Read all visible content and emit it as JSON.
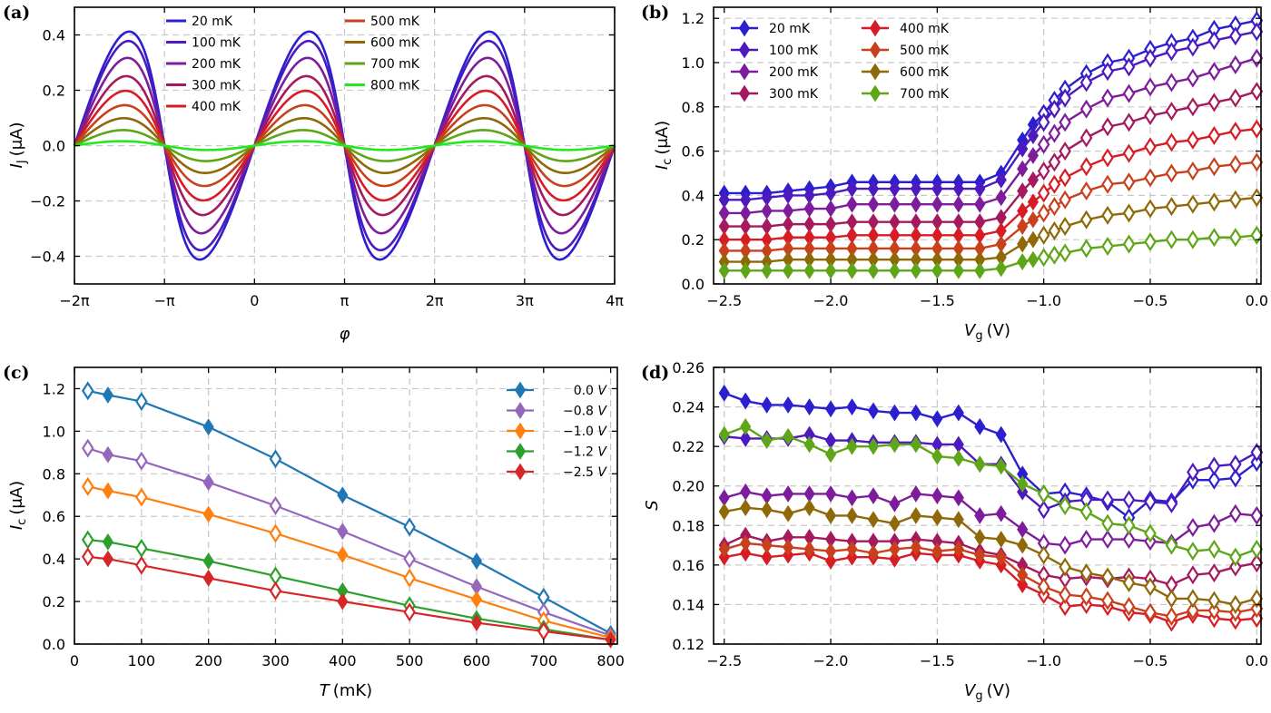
{
  "figure": {
    "title": ""
  },
  "chart_data": [
    {
      "id": "a",
      "panel_label": "(a)",
      "type": "line",
      "title": "",
      "xlabel": "φ",
      "ylabel_main": "I",
      "ylabel_sub": "J",
      "ylabel_unit": "(μA)",
      "xlim": [
        -6.2832,
        12.5664
      ],
      "ylim": [
        -0.5,
        0.5
      ],
      "xticks": [
        -6.2832,
        -3.1416,
        0,
        3.1416,
        6.2832,
        9.4248,
        12.5664
      ],
      "xtick_labels": [
        "−2π",
        "−π",
        "0",
        "π",
        "2π",
        "3π",
        "4π"
      ],
      "yticks": [
        -0.4,
        -0.2,
        0.0,
        0.2,
        0.4
      ],
      "ytick_labels": [
        "−0.4",
        "−0.2",
        "0.0",
        "0.2",
        "0.4"
      ],
      "grid": true,
      "legend_position": "top",
      "model": "I(φ) = A·sin(φ) / sqrt(1 − τ·sin²(φ/2)) scaled so that max equals peak",
      "series": [
        {
          "name": "20 mK",
          "color": "#2b1fd0",
          "peak": 0.412,
          "tau": 0.75
        },
        {
          "name": "100 mK",
          "color": "#4d1ac0",
          "peak": 0.378,
          "tau": 0.72
        },
        {
          "name": "200 mK",
          "color": "#7e1d9c",
          "peak": 0.317,
          "tau": 0.68
        },
        {
          "name": "300 mK",
          "color": "#a5195e",
          "peak": 0.251,
          "tau": 0.62
        },
        {
          "name": "400 mK",
          "color": "#d81c25",
          "peak": 0.198,
          "tau": 0.58
        },
        {
          "name": "500 mK",
          "color": "#c8411c",
          "peak": 0.146,
          "tau": 0.52
        },
        {
          "name": "600 mK",
          "color": "#8f6908",
          "peak": 0.099,
          "tau": 0.46
        },
        {
          "name": "700 mK",
          "color": "#5ea617",
          "peak": 0.056,
          "tau": 0.4
        },
        {
          "name": "800 mK",
          "color": "#22e820",
          "peak": 0.016,
          "tau": 0.3
        }
      ]
    },
    {
      "id": "b",
      "panel_label": "(b)",
      "type": "line",
      "title": "",
      "xlabel_main": "V",
      "xlabel_sub": "g",
      "xlabel_unit": "(V)",
      "ylabel_main": "I",
      "ylabel_sub": "c",
      "ylabel_unit": "(μA)",
      "xlim": [
        -2.55,
        0.02
      ],
      "ylim": [
        0.0,
        1.25
      ],
      "xticks": [
        -2.5,
        -2.0,
        -1.5,
        -1.0,
        -0.5,
        0.0
      ],
      "xtick_labels": [
        "−2.5",
        "−2.0",
        "−1.5",
        "−1.0",
        "−0.5",
        "0.0"
      ],
      "yticks": [
        0.0,
        0.2,
        0.4,
        0.6,
        0.8,
        1.0,
        1.2
      ],
      "ytick_labels": [
        "0.0",
        "0.2",
        "0.4",
        "0.6",
        "0.8",
        "1.0",
        "1.2"
      ],
      "grid": true,
      "legend_position": "upper-left",
      "x": [
        -2.5,
        -2.4,
        -2.3,
        -2.2,
        -2.1,
        -2.0,
        -1.9,
        -1.8,
        -1.7,
        -1.6,
        -1.5,
        -1.4,
        -1.3,
        -1.2,
        -1.1,
        -1.05,
        -1.0,
        -0.95,
        -0.9,
        -0.8,
        -0.7,
        -0.6,
        -0.5,
        -0.4,
        -0.3,
        -0.2,
        -0.1,
        0.0
      ],
      "series": [
        {
          "name": "20 mK",
          "color": "#2b1fd0",
          "values": [
            0.41,
            0.41,
            0.41,
            0.42,
            0.43,
            0.44,
            0.46,
            0.46,
            0.46,
            0.46,
            0.46,
            0.46,
            0.46,
            0.5,
            0.65,
            0.72,
            0.77,
            0.83,
            0.88,
            0.95,
            1.0,
            1.02,
            1.06,
            1.09,
            1.11,
            1.15,
            1.17,
            1.19
          ]
        },
        {
          "name": "100 mK",
          "color": "#4d1ac0",
          "values": [
            0.38,
            0.38,
            0.39,
            0.4,
            0.4,
            0.41,
            0.43,
            0.43,
            0.43,
            0.43,
            0.43,
            0.43,
            0.43,
            0.47,
            0.61,
            0.67,
            0.73,
            0.79,
            0.84,
            0.91,
            0.96,
            0.98,
            1.02,
            1.05,
            1.07,
            1.1,
            1.12,
            1.14
          ]
        },
        {
          "name": "200 mK",
          "color": "#7e1d9c",
          "values": [
            0.32,
            0.32,
            0.33,
            0.33,
            0.34,
            0.34,
            0.36,
            0.36,
            0.36,
            0.36,
            0.36,
            0.36,
            0.36,
            0.39,
            0.52,
            0.58,
            0.63,
            0.68,
            0.73,
            0.79,
            0.84,
            0.86,
            0.89,
            0.91,
            0.93,
            0.96,
            0.99,
            1.02
          ]
        },
        {
          "name": "300 mK",
          "color": "#a5195e",
          "values": [
            0.26,
            0.26,
            0.26,
            0.27,
            0.27,
            0.27,
            0.28,
            0.28,
            0.28,
            0.28,
            0.28,
            0.28,
            0.28,
            0.3,
            0.42,
            0.47,
            0.51,
            0.55,
            0.6,
            0.66,
            0.71,
            0.73,
            0.76,
            0.78,
            0.8,
            0.82,
            0.84,
            0.87
          ]
        },
        {
          "name": "400 mK",
          "color": "#d81c25",
          "values": [
            0.2,
            0.2,
            0.2,
            0.21,
            0.21,
            0.21,
            0.22,
            0.22,
            0.22,
            0.22,
            0.22,
            0.22,
            0.22,
            0.24,
            0.33,
            0.37,
            0.41,
            0.45,
            0.48,
            0.53,
            0.57,
            0.59,
            0.62,
            0.64,
            0.65,
            0.67,
            0.69,
            0.7
          ]
        },
        {
          "name": "500 mK",
          "color": "#c8411c",
          "values": [
            0.15,
            0.15,
            0.15,
            0.16,
            0.16,
            0.16,
            0.16,
            0.16,
            0.16,
            0.16,
            0.16,
            0.16,
            0.16,
            0.18,
            0.26,
            0.29,
            0.32,
            0.35,
            0.38,
            0.42,
            0.45,
            0.46,
            0.48,
            0.5,
            0.51,
            0.53,
            0.54,
            0.55
          ]
        },
        {
          "name": "600 mK",
          "color": "#8f6908",
          "values": [
            0.1,
            0.1,
            0.1,
            0.11,
            0.11,
            0.11,
            0.11,
            0.11,
            0.11,
            0.11,
            0.11,
            0.11,
            0.11,
            0.12,
            0.18,
            0.2,
            0.22,
            0.24,
            0.26,
            0.29,
            0.31,
            0.32,
            0.34,
            0.35,
            0.36,
            0.37,
            0.38,
            0.39
          ]
        },
        {
          "name": "700 mK",
          "color": "#5ea617",
          "values": [
            0.06,
            0.06,
            0.06,
            0.06,
            0.06,
            0.06,
            0.06,
            0.06,
            0.06,
            0.06,
            0.06,
            0.06,
            0.06,
            0.07,
            0.1,
            0.11,
            0.12,
            0.13,
            0.14,
            0.16,
            0.17,
            0.18,
            0.19,
            0.2,
            0.2,
            0.21,
            0.21,
            0.22
          ]
        }
      ]
    },
    {
      "id": "c",
      "panel_label": "(c)",
      "type": "line",
      "title": "",
      "xlabel_main": "T",
      "xlabel_unit": "(mK)",
      "ylabel_main": "I",
      "ylabel_sub": "c",
      "ylabel_unit": "(μA)",
      "xlim": [
        0,
        810
      ],
      "ylim": [
        0.0,
        1.3
      ],
      "xticks": [
        0,
        100,
        200,
        300,
        400,
        500,
        600,
        700,
        800
      ],
      "xtick_labels": [
        "0",
        "100",
        "200",
        "300",
        "400",
        "500",
        "600",
        "700",
        "800"
      ],
      "yticks": [
        0.0,
        0.2,
        0.4,
        0.6,
        0.8,
        1.0,
        1.2
      ],
      "ytick_labels": [
        "0.0",
        "0.2",
        "0.4",
        "0.6",
        "0.8",
        "1.0",
        "1.2"
      ],
      "grid": true,
      "legend_position": "upper-right",
      "x": [
        20,
        50,
        100,
        200,
        300,
        400,
        500,
        600,
        700,
        800
      ],
      "series": [
        {
          "name": "0.0",
          "unit": "V",
          "color": "#1f77b4",
          "values": [
            1.19,
            1.17,
            1.14,
            1.02,
            0.87,
            0.7,
            0.55,
            0.39,
            0.22,
            0.05
          ]
        },
        {
          "name": "−0.8",
          "unit": "V",
          "color": "#9467bd",
          "values": [
            0.92,
            0.89,
            0.86,
            0.76,
            0.65,
            0.53,
            0.4,
            0.27,
            0.15,
            0.04
          ]
        },
        {
          "name": "−1.0",
          "unit": "V",
          "color": "#ff7f0e",
          "values": [
            0.74,
            0.72,
            0.69,
            0.61,
            0.52,
            0.42,
            0.31,
            0.21,
            0.11,
            0.03
          ]
        },
        {
          "name": "−1.2",
          "unit": "V",
          "color": "#2ca02c",
          "values": [
            0.49,
            0.48,
            0.45,
            0.39,
            0.32,
            0.25,
            0.18,
            0.12,
            0.07,
            0.02
          ]
        },
        {
          "name": "−2.5",
          "unit": "V",
          "color": "#d62728",
          "values": [
            0.41,
            0.4,
            0.37,
            0.31,
            0.25,
            0.2,
            0.15,
            0.1,
            0.06,
            0.02
          ]
        }
      ]
    },
    {
      "id": "d",
      "panel_label": "(d)",
      "type": "line",
      "title": "",
      "xlabel_main": "V",
      "xlabel_sub": "g",
      "xlabel_unit": "(V)",
      "ylabel_main": "S",
      "xlim": [
        -2.55,
        0.02
      ],
      "ylim": [
        0.12,
        0.26
      ],
      "xticks": [
        -2.5,
        -2.0,
        -1.5,
        -1.0,
        -0.5,
        0.0
      ],
      "xtick_labels": [
        "−2.5",
        "−2.0",
        "−1.5",
        "−1.0",
        "−0.5",
        "0.0"
      ],
      "yticks": [
        0.12,
        0.14,
        0.16,
        0.18,
        0.2,
        0.22,
        0.24,
        0.26
      ],
      "ytick_labels": [
        "0.12",
        "0.14",
        "0.16",
        "0.18",
        "0.20",
        "0.22",
        "0.24",
        "0.26"
      ],
      "grid": true,
      "x": [
        -2.5,
        -2.4,
        -2.3,
        -2.2,
        -2.1,
        -2.0,
        -1.9,
        -1.8,
        -1.7,
        -1.6,
        -1.5,
        -1.4,
        -1.3,
        -1.2,
        -1.1,
        -1.0,
        -0.9,
        -0.8,
        -0.7,
        -0.6,
        -0.5,
        -0.4,
        -0.3,
        -0.2,
        -0.1,
        0.0
      ],
      "series": [
        {
          "name": "20 mK",
          "color": "#2b1fd0",
          "values": [
            0.247,
            0.243,
            0.241,
            0.241,
            0.24,
            0.239,
            0.24,
            0.238,
            0.237,
            0.237,
            0.234,
            0.237,
            0.23,
            0.226,
            0.206,
            0.196,
            0.197,
            0.195,
            0.192,
            0.184,
            0.193,
            0.192,
            0.203,
            0.203,
            0.204,
            0.212
          ]
        },
        {
          "name": "100 mK",
          "color": "#4d1ac0",
          "values": [
            0.225,
            0.224,
            0.224,
            0.224,
            0.226,
            0.223,
            0.223,
            0.222,
            0.222,
            0.222,
            0.221,
            0.221,
            0.211,
            0.211,
            0.197,
            0.188,
            0.192,
            0.193,
            0.193,
            0.193,
            0.192,
            0.191,
            0.207,
            0.21,
            0.211,
            0.217
          ]
        },
        {
          "name": "200 mK",
          "color": "#7e1d9c",
          "values": [
            0.194,
            0.197,
            0.195,
            0.196,
            0.196,
            0.196,
            0.194,
            0.195,
            0.191,
            0.196,
            0.195,
            0.194,
            0.185,
            0.186,
            0.178,
            0.171,
            0.17,
            0.173,
            0.173,
            0.173,
            0.172,
            0.171,
            0.179,
            0.181,
            0.186,
            0.185
          ]
        },
        {
          "name": "300 mK",
          "color": "#a5195e",
          "values": [
            0.17,
            0.175,
            0.172,
            0.174,
            0.174,
            0.173,
            0.172,
            0.172,
            0.172,
            0.173,
            0.172,
            0.171,
            0.167,
            0.165,
            0.16,
            0.155,
            0.153,
            0.154,
            0.153,
            0.154,
            0.153,
            0.15,
            0.155,
            0.156,
            0.159,
            0.161
          ]
        },
        {
          "name": "400 mK",
          "color": "#d81c25",
          "values": [
            0.164,
            0.166,
            0.164,
            0.165,
            0.166,
            0.162,
            0.164,
            0.164,
            0.163,
            0.166,
            0.165,
            0.165,
            0.162,
            0.16,
            0.15,
            0.145,
            0.139,
            0.14,
            0.139,
            0.136,
            0.135,
            0.131,
            0.135,
            0.133,
            0.132,
            0.133
          ]
        },
        {
          "name": "500 mK",
          "color": "#c8411c",
          "values": [
            0.168,
            0.171,
            0.17,
            0.169,
            0.168,
            0.167,
            0.168,
            0.166,
            0.168,
            0.169,
            0.167,
            0.168,
            0.165,
            0.164,
            0.155,
            0.149,
            0.145,
            0.144,
            0.142,
            0.139,
            0.136,
            0.134,
            0.137,
            0.137,
            0.136,
            0.138
          ]
        },
        {
          "name": "600 mK",
          "color": "#8f6908",
          "values": [
            0.187,
            0.189,
            0.188,
            0.186,
            0.189,
            0.185,
            0.185,
            0.183,
            0.181,
            0.185,
            0.184,
            0.183,
            0.174,
            0.173,
            0.17,
            0.165,
            0.159,
            0.156,
            0.154,
            0.151,
            0.149,
            0.143,
            0.143,
            0.142,
            0.14,
            0.143
          ]
        },
        {
          "name": "700 mK",
          "color": "#5ea617",
          "values": [
            0.226,
            0.23,
            0.223,
            0.225,
            0.221,
            0.216,
            0.22,
            0.22,
            0.221,
            0.221,
            0.215,
            0.214,
            0.211,
            0.21,
            0.201,
            0.196,
            0.19,
            0.187,
            0.181,
            0.18,
            0.176,
            0.17,
            0.167,
            0.168,
            0.164,
            0.168
          ]
        }
      ]
    }
  ]
}
